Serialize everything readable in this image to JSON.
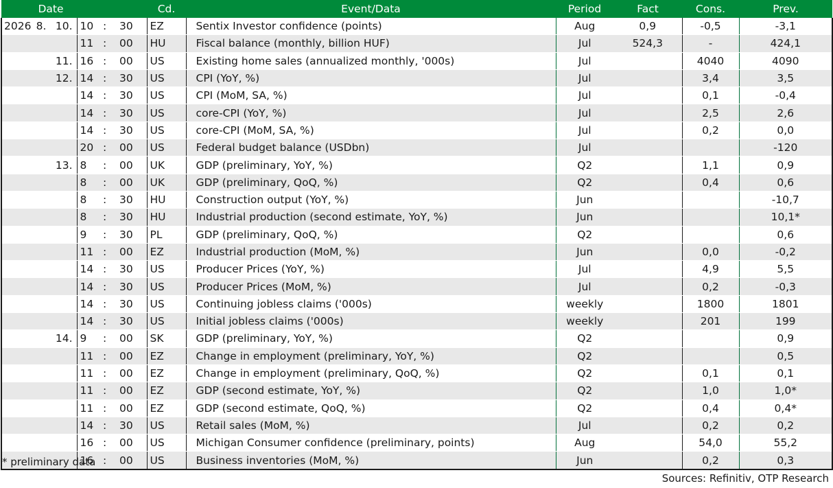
{
  "headers": {
    "date": "Date",
    "code": "Cd.",
    "event": "Event/Data",
    "period": "Period",
    "fact": "Fact",
    "cons": "Cons.",
    "prev": "Prev."
  },
  "rows": [
    {
      "y": "2026",
      "m": "8.",
      "d": "10.",
      "h": "10",
      "mm": "30",
      "cd": "EZ",
      "ev": "Sentix Investor confidence (points)",
      "pe": "Aug",
      "fa": "0,9",
      "co": "-0,5",
      "pr": "-3,1"
    },
    {
      "y": "",
      "m": "",
      "d": "",
      "h": "11",
      "mm": "00",
      "cd": "HU",
      "ev": "Fiscal balance (monthly, billion HUF)",
      "pe": "Jul",
      "fa": "524,3",
      "co": "-",
      "pr": "424,1"
    },
    {
      "y": "",
      "m": "",
      "d": "11.",
      "h": "16",
      "mm": "00",
      "cd": "US",
      "ev": "Existing home sales (annualized monthly, '000s)",
      "pe": "Jul",
      "fa": "",
      "co": "4040",
      "pr": "4090"
    },
    {
      "y": "",
      "m": "",
      "d": "12.",
      "h": "14",
      "mm": "30",
      "cd": "US",
      "ev": "CPI (YoY, %)",
      "pe": "Jul",
      "fa": "",
      "co": "3,4",
      "pr": "3,5"
    },
    {
      "y": "",
      "m": "",
      "d": "",
      "h": "14",
      "mm": "30",
      "cd": "US",
      "ev": "CPI (MoM, SA, %)",
      "pe": "Jul",
      "fa": "",
      "co": "0,1",
      "pr": "-0,4"
    },
    {
      "y": "",
      "m": "",
      "d": "",
      "h": "14",
      "mm": "30",
      "cd": "US",
      "ev": "core-CPI (YoY, %)",
      "pe": "Jul",
      "fa": "",
      "co": "2,5",
      "pr": "2,6"
    },
    {
      "y": "",
      "m": "",
      "d": "",
      "h": "14",
      "mm": "30",
      "cd": "US",
      "ev": "core-CPI (MoM, SA, %)",
      "pe": "Jul",
      "fa": "",
      "co": "0,2",
      "pr": "0,0"
    },
    {
      "y": "",
      "m": "",
      "d": "",
      "h": "20",
      "mm": "00",
      "cd": "US",
      "ev": "Federal budget balance (USDbn)",
      "pe": "Jul",
      "fa": "",
      "co": "",
      "pr": "-120"
    },
    {
      "y": "",
      "m": "",
      "d": "13.",
      "h": "8",
      "mm": "00",
      "cd": "UK",
      "ev": "GDP (preliminary, YoY, %)",
      "pe": "Q2",
      "fa": "",
      "co": "1,1",
      "pr": "0,9"
    },
    {
      "y": "",
      "m": "",
      "d": "",
      "h": "8",
      "mm": "00",
      "cd": "UK",
      "ev": "GDP (preliminary, QoQ, %)",
      "pe": "Q2",
      "fa": "",
      "co": "0,4",
      "pr": "0,6"
    },
    {
      "y": "",
      "m": "",
      "d": "",
      "h": "8",
      "mm": "30",
      "cd": "HU",
      "ev": "Construction output (YoY, %)",
      "pe": "Jun",
      "fa": "",
      "co": "",
      "pr": "-10,7"
    },
    {
      "y": "",
      "m": "",
      "d": "",
      "h": "8",
      "mm": "30",
      "cd": "HU",
      "ev": "Industrial production (second estimate, YoY, %)",
      "pe": "Jun",
      "fa": "",
      "co": "",
      "pr": "10,1*"
    },
    {
      "y": "",
      "m": "",
      "d": "",
      "h": "9",
      "mm": "30",
      "cd": "PL",
      "ev": "GDP (preliminary, QoQ, %)",
      "pe": "Q2",
      "fa": "",
      "co": "",
      "pr": "0,6"
    },
    {
      "y": "",
      "m": "",
      "d": "",
      "h": "11",
      "mm": "00",
      "cd": "EZ",
      "ev": "Industrial production (MoM, %)",
      "pe": "Jun",
      "fa": "",
      "co": "0,0",
      "pr": "-0,2"
    },
    {
      "y": "",
      "m": "",
      "d": "",
      "h": "14",
      "mm": "30",
      "cd": "US",
      "ev": "Producer Prices (YoY, %)",
      "pe": "Jul",
      "fa": "",
      "co": "4,9",
      "pr": "5,5"
    },
    {
      "y": "",
      "m": "",
      "d": "",
      "h": "14",
      "mm": "30",
      "cd": "US",
      "ev": "Producer Prices (MoM, %)",
      "pe": "Jul",
      "fa": "",
      "co": "0,2",
      "pr": "-0,3"
    },
    {
      "y": "",
      "m": "",
      "d": "",
      "h": "14",
      "mm": "30",
      "cd": "US",
      "ev": "Continuing jobless claims ('000s)",
      "pe": "weekly",
      "fa": "",
      "co": "1800",
      "pr": "1801"
    },
    {
      "y": "",
      "m": "",
      "d": "",
      "h": "14",
      "mm": "30",
      "cd": "US",
      "ev": "Initial jobless claims ('000s)",
      "pe": "weekly",
      "fa": "",
      "co": "201",
      "pr": "199"
    },
    {
      "y": "",
      "m": "",
      "d": "14.",
      "h": "9",
      "mm": "00",
      "cd": "SK",
      "ev": "GDP (preliminary, YoY, %)",
      "pe": "Q2",
      "fa": "",
      "co": "",
      "pr": "0,9"
    },
    {
      "y": "",
      "m": "",
      "d": "",
      "h": "11",
      "mm": "00",
      "cd": "EZ",
      "ev": "Change in employment (preliminary, YoY, %)",
      "pe": "Q2",
      "fa": "",
      "co": "",
      "pr": "0,5"
    },
    {
      "y": "",
      "m": "",
      "d": "",
      "h": "11",
      "mm": "00",
      "cd": "EZ",
      "ev": "Change in employment (preliminary, QoQ, %)",
      "pe": "Q2",
      "fa": "",
      "co": "0,1",
      "pr": "0,1"
    },
    {
      "y": "",
      "m": "",
      "d": "",
      "h": "11",
      "mm": "00",
      "cd": "EZ",
      "ev": "GDP (second estimate, YoY, %)",
      "pe": "Q2",
      "fa": "",
      "co": "1,0",
      "pr": "1,0*"
    },
    {
      "y": "",
      "m": "",
      "d": "",
      "h": "11",
      "mm": "00",
      "cd": "EZ",
      "ev": "GDP (second estimate, QoQ, %)",
      "pe": "Q2",
      "fa": "",
      "co": "0,4",
      "pr": "0,4*"
    },
    {
      "y": "",
      "m": "",
      "d": "",
      "h": "14",
      "mm": "30",
      "cd": "US",
      "ev": "Retail sales (MoM, %)",
      "pe": "Jul",
      "fa": "",
      "co": "0,2",
      "pr": "0,2"
    },
    {
      "y": "",
      "m": "",
      "d": "",
      "h": "16",
      "mm": "00",
      "cd": "US",
      "ev": "Michigan Consumer confidence (preliminary, points)",
      "pe": "Aug",
      "fa": "",
      "co": "54,0",
      "pr": "55,2"
    },
    {
      "y": "",
      "m": "",
      "d": "",
      "h": "16",
      "mm": "00",
      "cd": "US",
      "ev": "Business inventories (MoM, %)",
      "pe": "Jun",
      "fa": "",
      "co": "0,2",
      "pr": "0,3"
    }
  ],
  "time_separator": ":",
  "footnote": "* preliminary data",
  "sources": "Sources: Refinitiv, OTP Research",
  "colors": {
    "header_bg": "#008a3a",
    "header_text": "#ffffff",
    "stripe": "#e8e8e8"
  }
}
